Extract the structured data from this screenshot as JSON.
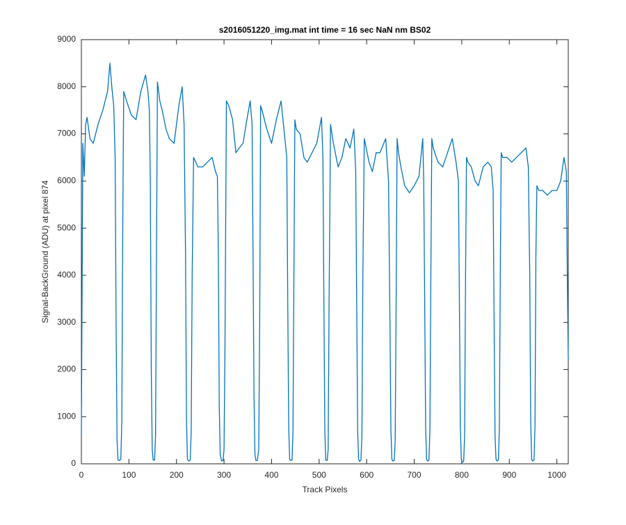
{
  "chart_data": {
    "type": "line",
    "title": "s2016051220_img.mat int time = 16 sec  NaN nm BS02",
    "x_label": "Track Pixels",
    "y_label": "Signal-BackGround (ADU) at pixel 874",
    "xlim": [
      0,
      1024
    ],
    "ylim": [
      0,
      9000
    ],
    "xticks": [
      0,
      100,
      200,
      300,
      400,
      500,
      600,
      700,
      800,
      900,
      1000
    ],
    "yticks": [
      0,
      1000,
      2000,
      3000,
      4000,
      5000,
      6000,
      7000,
      8000,
      9000
    ],
    "grid": false,
    "series": [
      {
        "color": "#0072bd",
        "x": [
          0,
          3,
          6,
          9,
          12,
          18,
          25,
          35,
          45,
          55,
          60,
          64,
          68,
          71,
          73,
          75,
          77,
          80,
          83,
          85,
          87,
          89,
          95,
          105,
          115,
          125,
          135,
          140,
          143,
          145,
          147,
          149,
          151,
          154,
          156,
          158,
          160,
          165,
          170,
          178,
          185,
          195,
          205,
          212,
          216,
          219,
          221,
          223,
          226,
          229,
          231,
          233,
          236,
          245,
          255,
          265,
          275,
          282,
          286,
          288,
          290,
          292,
          295,
          298,
          300,
          302,
          305,
          310,
          318,
          325,
          332,
          340,
          348,
          355,
          359,
          361,
          363,
          365,
          367,
          370,
          373,
          375,
          377,
          380,
          390,
          400,
          410,
          420,
          428,
          432,
          434,
          436,
          438,
          440,
          443,
          445,
          447,
          449,
          452,
          460,
          468,
          475,
          485,
          495,
          505,
          508,
          510,
          512,
          514,
          517,
          519,
          521,
          524,
          530,
          540,
          548,
          556,
          565,
          573,
          577,
          579,
          581,
          583,
          585,
          588,
          590,
          592,
          595,
          605,
          612,
          620,
          628,
          640,
          646,
          649,
          651,
          653,
          655,
          658,
          660,
          662,
          664,
          667,
          672,
          680,
          690,
          700,
          710,
          718,
          720,
          722,
          724,
          726,
          728,
          731,
          733,
          735,
          737,
          740,
          750,
          760,
          770,
          780,
          788,
          793,
          795,
          797,
          799,
          801,
          804,
          806,
          808,
          810,
          813,
          820,
          828,
          835,
          845,
          855,
          862,
          866,
          868,
          870,
          872,
          874,
          877,
          879,
          881,
          883,
          886,
          895,
          905,
          915,
          925,
          935,
          940,
          943,
          945,
          947,
          949,
          952,
          954,
          956,
          958,
          962,
          970,
          980,
          990,
          1000,
          1008,
          1015,
          1020,
          1022,
          1024
        ],
        "values": [
          600,
          6800,
          6100,
          7200,
          7350,
          6900,
          6800,
          7200,
          7500,
          7900,
          8500,
          8000,
          7600,
          6500,
          3000,
          500,
          80,
          70,
          100,
          900,
          5000,
          7900,
          7700,
          7400,
          7300,
          7900,
          8250,
          7900,
          7500,
          6000,
          2000,
          300,
          80,
          80,
          600,
          4500,
          8100,
          7700,
          7500,
          7100,
          6900,
          6800,
          7600,
          8000,
          7200,
          4500,
          1000,
          100,
          60,
          80,
          700,
          4000,
          6500,
          6300,
          6300,
          6400,
          6500,
          6200,
          6100,
          4500,
          1200,
          200,
          60,
          70,
          300,
          2500,
          7700,
          7600,
          7300,
          6600,
          6700,
          6800,
          7300,
          7700,
          7200,
          4500,
          1500,
          200,
          70,
          70,
          300,
          3000,
          7600,
          7500,
          7100,
          6800,
          7300,
          7700,
          6900,
          6500,
          3500,
          800,
          100,
          70,
          80,
          700,
          4000,
          7300,
          7100,
          7000,
          6500,
          6400,
          6600,
          6800,
          7350,
          6500,
          3500,
          700,
          80,
          70,
          300,
          3500,
          7200,
          6800,
          6300,
          6500,
          6900,
          6700,
          7100,
          6200,
          3500,
          700,
          100,
          50,
          80,
          600,
          4000,
          6900,
          6400,
          6200,
          6600,
          6600,
          6900,
          6000,
          3000,
          700,
          100,
          60,
          70,
          500,
          3500,
          6900,
          6600,
          6300,
          5900,
          5750,
          5900,
          6100,
          6900,
          6000,
          3500,
          800,
          100,
          60,
          80,
          700,
          4000,
          6900,
          6700,
          6400,
          6300,
          6600,
          6900,
          6400,
          6000,
          3500,
          800,
          100,
          30,
          50,
          600,
          4000,
          6500,
          6400,
          6300,
          6000,
          5900,
          6300,
          6400,
          6300,
          5800,
          3000,
          600,
          100,
          60,
          80,
          700,
          4000,
          6600,
          6500,
          6500,
          6400,
          6500,
          6600,
          6700,
          6300,
          4000,
          900,
          100,
          60,
          80,
          800,
          4500,
          5900,
          5800,
          5800,
          5700,
          5800,
          5800,
          6000,
          6500,
          6200,
          4000,
          2200
        ]
      }
    ]
  }
}
